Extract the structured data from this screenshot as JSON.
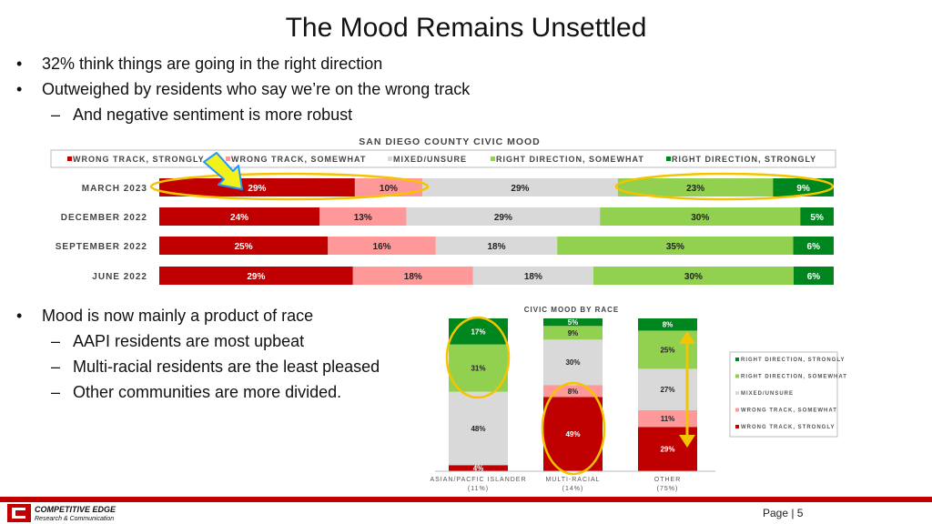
{
  "title": "The Mood Remains Unsettled",
  "bullets_top": [
    {
      "text": "32% think things are going in the right direction",
      "level": 1
    },
    {
      "text": "Outweighed by residents who say we’re on the wrong track",
      "level": 1
    },
    {
      "text": "And negative sentiment is more robust",
      "level": 2
    }
  ],
  "bullets_bottom": [
    {
      "text": "Mood is now mainly a product of race",
      "level": 1
    },
    {
      "text": "AAPI residents are most upbeat",
      "level": 2
    },
    {
      "text": "Multi-racial residents are the least pleased",
      "level": 2
    },
    {
      "text": "Other communities are more divided.",
      "level": 2
    }
  ],
  "colors": {
    "wrong_strongly": "#c00000",
    "wrong_somewhat": "#ff9999",
    "mixed": "#d9d9d9",
    "right_somewhat": "#92d050",
    "right_strongly": "#00861e",
    "highlight": "#f5c400",
    "arrow_blue": "#1f97ff",
    "arrow_yellow": "#f2f21a"
  },
  "chart_data": [
    {
      "type": "bar",
      "orientation": "horizontal",
      "stacked": true,
      "title": "SAN DIEGO COUNTY CIVIC MOOD",
      "legend": [
        "WRONG TRACK, STRONGLY",
        "WRONG TRACK, SOMEWHAT",
        "MIXED/UNSURE",
        "RIGHT DIRECTION, SOMEWHAT",
        "RIGHT DIRECTION, STRONGLY"
      ],
      "legend_position": "top",
      "categories": [
        "MARCH 2023",
        "DECEMBER 2022",
        "SEPTEMBER 2022",
        "JUNE 2022"
      ],
      "series": [
        {
          "name": "WRONG TRACK, STRONGLY",
          "values": [
            29,
            24,
            25,
            29
          ]
        },
        {
          "name": "WRONG TRACK, SOMEWHAT",
          "values": [
            10,
            13,
            16,
            18
          ]
        },
        {
          "name": "MIXED/UNSURE",
          "values": [
            29,
            29,
            18,
            18
          ]
        },
        {
          "name": "RIGHT DIRECTION, SOMEWHAT",
          "values": [
            23,
            30,
            35,
            30
          ]
        },
        {
          "name": "RIGHT DIRECTION, STRONGLY",
          "values": [
            9,
            5,
            6,
            6
          ]
        }
      ],
      "unit": "%"
    },
    {
      "type": "bar",
      "orientation": "vertical",
      "stacked": true,
      "title": "CIVIC MOOD BY RACE",
      "legend": [
        "RIGHT DIRECTION, STRONGLY",
        "RIGHT DIRECTION, SOMEWHAT",
        "MIXED/UNSURE",
        "WRONG TRACK, SOMEWHAT",
        "WRONG TRACK, STRONGLY"
      ],
      "legend_position": "right",
      "categories": [
        "ASIAN/PACFIC ISLANDER",
        "MULTI-RACIAL",
        "OTHER"
      ],
      "category_sublabels": [
        "(11%)",
        "(14%)",
        "(75%)"
      ],
      "series": [
        {
          "name": "WRONG TRACK, STRONGLY",
          "values": [
            4,
            49,
            29
          ]
        },
        {
          "name": "WRONG TRACK, SOMEWHAT",
          "values": [
            0,
            8,
            11
          ]
        },
        {
          "name": "MIXED/UNSURE",
          "values": [
            48,
            30,
            27
          ]
        },
        {
          "name": "RIGHT DIRECTION, SOMEWHAT",
          "values": [
            31,
            9,
            25
          ]
        },
        {
          "name": "RIGHT DIRECTION, STRONGLY",
          "values": [
            17,
            5,
            8
          ]
        }
      ],
      "unit": "%"
    }
  ],
  "footer": {
    "logo_line1": "COMPETITIVE EDGE",
    "logo_line2": "Research & Communication",
    "page_label": "Page | 5"
  }
}
